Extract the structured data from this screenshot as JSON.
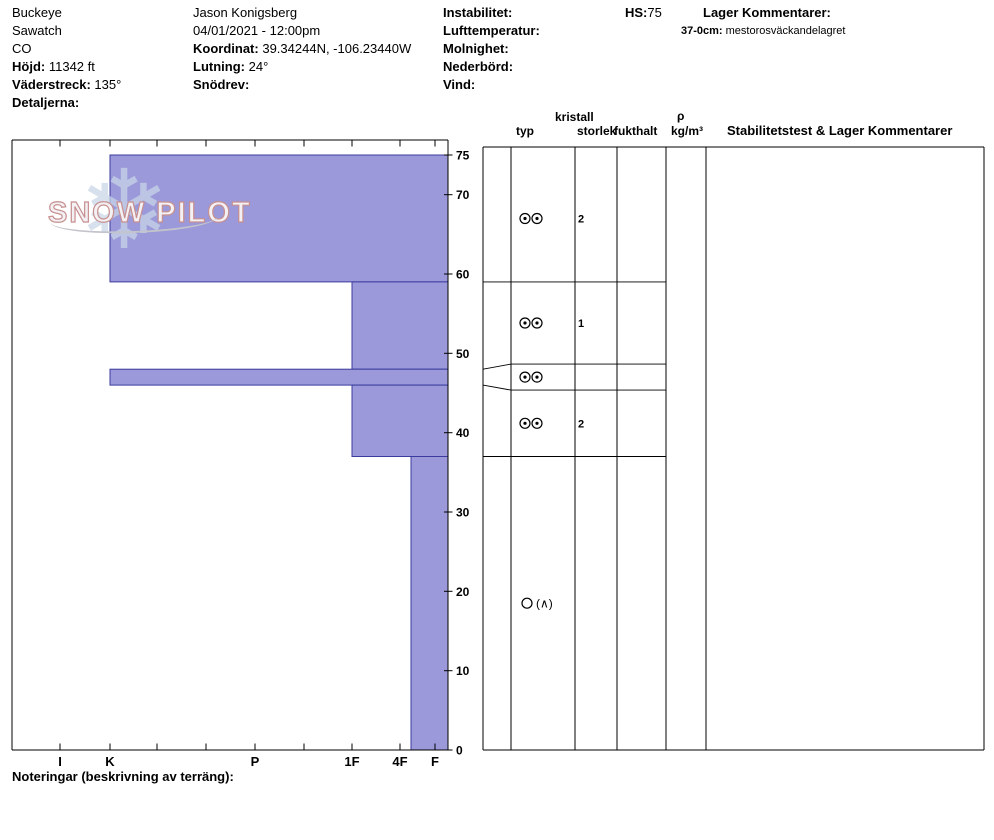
{
  "header": {
    "site": {
      "name": "Buckeye",
      "range": "Sawatch",
      "state": "CO",
      "elevation": {
        "label": "Höjd:",
        "value": "11342 ft"
      },
      "aspect": {
        "label": "Väderstreck:",
        "value": "135°"
      },
      "details": {
        "label": "Detaljerna:"
      }
    },
    "observer": {
      "name": "Jason Konigsberg",
      "datetime": "04/01/2021 - 12:00pm",
      "coordinates": {
        "label": "Koordinat:",
        "value": "39.34244N, -106.23440W"
      },
      "slope": {
        "label": "Lutning:",
        "value": "24°"
      },
      "drift": {
        "label": "Snödrev:"
      }
    },
    "weather": {
      "instability": "Instabilitet:",
      "air_temp": "Lufttemperatur:",
      "sky": "Molnighet:",
      "precip": "Nederbörd:",
      "wind": "Vind:"
    },
    "hs": {
      "label": "HS:",
      "value": "75"
    },
    "layer_comments": {
      "title": "Lager Kommentarer:",
      "entry": {
        "depth": "37-0cm:",
        "text": "mestorosväckandelagret"
      }
    }
  },
  "logo": {
    "snowflake": "❄",
    "text": "SNOW PILOT"
  },
  "axes": {
    "y_ticks": [
      75,
      70,
      60,
      50,
      40,
      30,
      20,
      10,
      0
    ],
    "hardness_labels": [
      "I",
      "K",
      "P",
      "1F",
      "4F",
      "F"
    ]
  },
  "table": {
    "headers": {
      "kristall": "kristall",
      "typ": "typ",
      "storlek": "storlek",
      "fukthalt": "fukthalt",
      "rho": "ρ",
      "density_unit": "kg/m³",
      "stability": "Stabilitetstest & Lager Kommentarer"
    }
  },
  "footer": {
    "notes_label": "Noteringar (beskrivning av terräng):"
  },
  "chart_data": {
    "type": "bar",
    "subtype": "snow-profile-hardness",
    "title": "",
    "height_axis": {
      "min": 0,
      "max": 75,
      "unit": "cm"
    },
    "hardness_axis": [
      "F",
      "4F",
      "1F",
      "P",
      "K",
      "I"
    ],
    "total_depth_hs": 75,
    "colors": {
      "layer_fill": "#9b99d9",
      "layer_border": "#3b3b9e"
    },
    "layers": [
      {
        "top": 75,
        "bottom": 59,
        "hardness": "K",
        "grain_icon": "double-circles",
        "grain_size": "2"
      },
      {
        "top": 59,
        "bottom": 48,
        "hardness": "1F",
        "grain_icon": "double-circles",
        "grain_size": "1"
      },
      {
        "top": 48,
        "bottom": 46,
        "hardness": "K",
        "grain_icon": "double-circles",
        "grain_size": ""
      },
      {
        "top": 46,
        "bottom": 37,
        "hardness": "1F",
        "grain_icon": "double-circles",
        "grain_size": "2"
      },
      {
        "top": 37,
        "bottom": 0,
        "hardness": "4F+",
        "grain_icon": "circle-caret",
        "grain_icon_text": "(∧)",
        "grain_size": ""
      }
    ]
  }
}
